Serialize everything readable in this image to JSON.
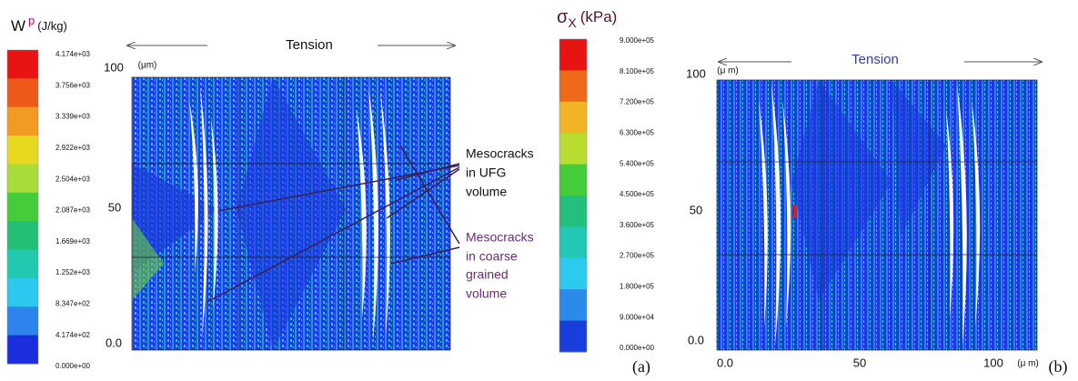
{
  "left": {
    "colorbar": {
      "title": {
        "symbol": "W",
        "sup": "p",
        "unit": "(J/kg)"
      },
      "labels": [
        "4.174e+03",
        "3.756e+03",
        "3.339e+03",
        "2.922e+03",
        "2.504e+03",
        "2.087e+03",
        "1.669e+03",
        "1.252e+03",
        "8.347e+02",
        "4.174e+02",
        "0.000e+00"
      ],
      "colors": [
        "#e81414",
        "#ee5a1a",
        "#f29a22",
        "#e8d820",
        "#a8dc38",
        "#44cc3a",
        "#22bf74",
        "#22c9b0",
        "#2cc8ee",
        "#2c84ec",
        "#1a2ede"
      ]
    },
    "plot": {
      "arrow_label": "Tension",
      "y_labels": [
        "100",
        "50",
        "0.0"
      ],
      "y_unit": "(μm)"
    },
    "annotations": [
      {
        "lines": [
          "Mesocracks",
          "in UFG",
          "volume"
        ]
      },
      {
        "lines": [
          "Mesocracks",
          "in coarse",
          "grained",
          "volume"
        ]
      }
    ],
    "panel_label": "(a)"
  },
  "right": {
    "colorbar": {
      "title": {
        "symbol": "σ",
        "sub": "X",
        "unit": "(kPa)"
      },
      "labels": [
        "9.000e+05",
        "8.100e+05",
        "7.200e+05",
        "6.300e+05",
        "5.400e+05",
        "4.500e+05",
        "3.600e+05",
        "2.700e+05",
        "1.800e+05",
        "9.000e+04",
        "0.000e+00"
      ],
      "colors": [
        "#e81414",
        "#ee6a1a",
        "#f2b422",
        "#b8dc30",
        "#44cc3a",
        "#22c07a",
        "#22c8b4",
        "#2ccaee",
        "#2c8aec",
        "#1a3ede"
      ]
    },
    "plot": {
      "arrow_label": "Tension",
      "y_labels": [
        "100",
        "50",
        "0.0"
      ],
      "y_unit": "(μ m)",
      "x_labels": [
        "0.0",
        "50",
        "100"
      ],
      "x_unit": "(μ m)"
    },
    "panel_label": "(b)"
  }
}
